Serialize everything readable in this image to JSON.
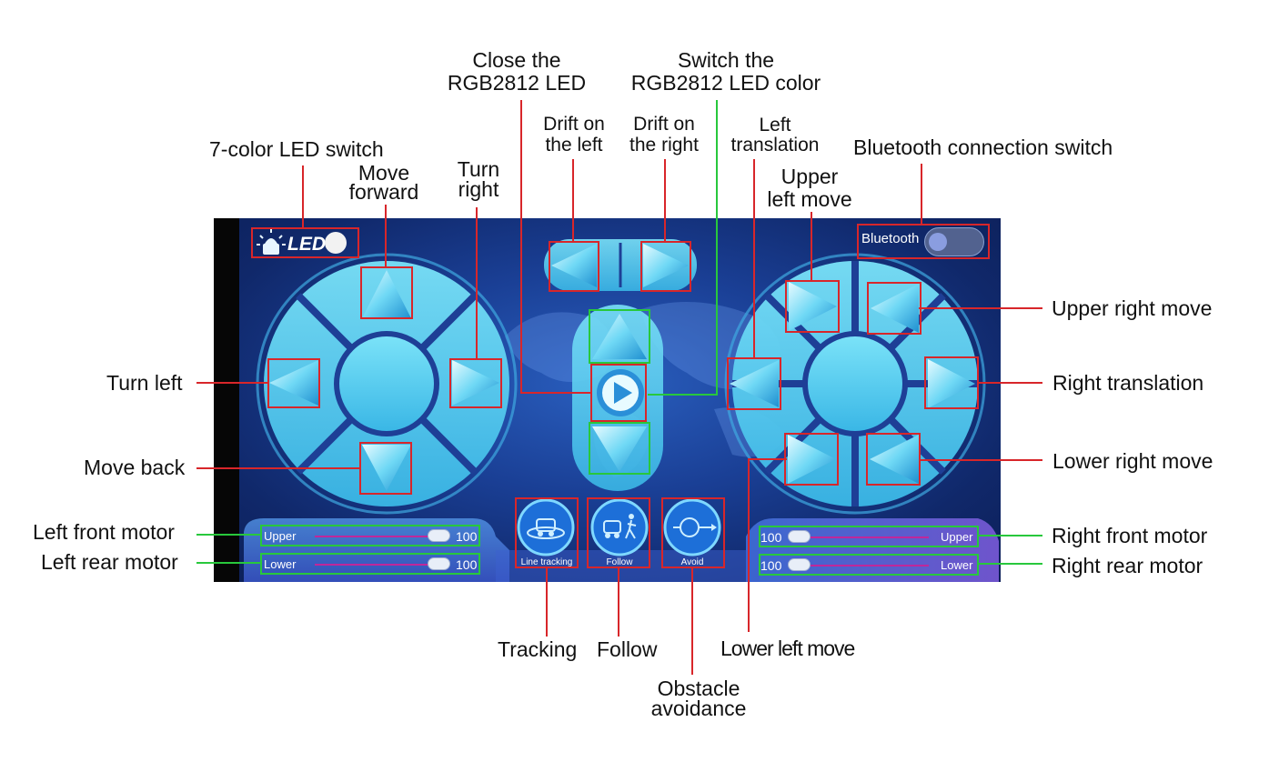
{
  "annotations": {
    "close_led": [
      "Close the",
      "RGB2812 LED"
    ],
    "switch_color": [
      "Switch the",
      "RGB2812 LED color"
    ],
    "drift_left": [
      "Drift on",
      "the left"
    ],
    "drift_right": [
      "Drift on",
      "the right"
    ],
    "left_translation": [
      "Left",
      "translation"
    ],
    "led_switch": "7-color LED switch",
    "bluetooth_switch": "Bluetooth connection switch",
    "move_forward": [
      "Move",
      "forward"
    ],
    "turn_right": [
      "Turn",
      "right"
    ],
    "upper_left_move": [
      "Upper",
      "left move"
    ],
    "upper_right_move": "Upper right move",
    "turn_left": "Turn left",
    "right_translation": "Right translation",
    "move_back": "Move back",
    "lower_right_move": "Lower right move",
    "left_front_motor": "Left front motor",
    "left_rear_motor": "Left rear motor",
    "right_front_motor": "Right front motor",
    "right_rear_motor": "Right rear motor",
    "tracking": "Tracking",
    "follow": "Follow",
    "lower_left_move": "Lower left move",
    "obstacle_avoidance": [
      "Obstacle",
      "avoidance"
    ]
  },
  "app": {
    "led_label": "LED",
    "bluetooth_label": "Bluetooth",
    "sliders": {
      "left_upper": {
        "label": "Upper",
        "value": "100"
      },
      "left_lower": {
        "label": "Lower",
        "value": "100"
      },
      "right_upper": {
        "label": "Upper",
        "value": "100"
      },
      "right_lower": {
        "label": "Lower",
        "value": "100"
      }
    },
    "modes": {
      "line_tracking": "Line tracking",
      "follow": "Follow",
      "avoid": "Avoid"
    }
  },
  "colors": {
    "accent_blue": "#6fd8f5",
    "highlight_red": "#d8262a",
    "highlight_green": "#28c83c",
    "slider_track": "#c0279a"
  }
}
